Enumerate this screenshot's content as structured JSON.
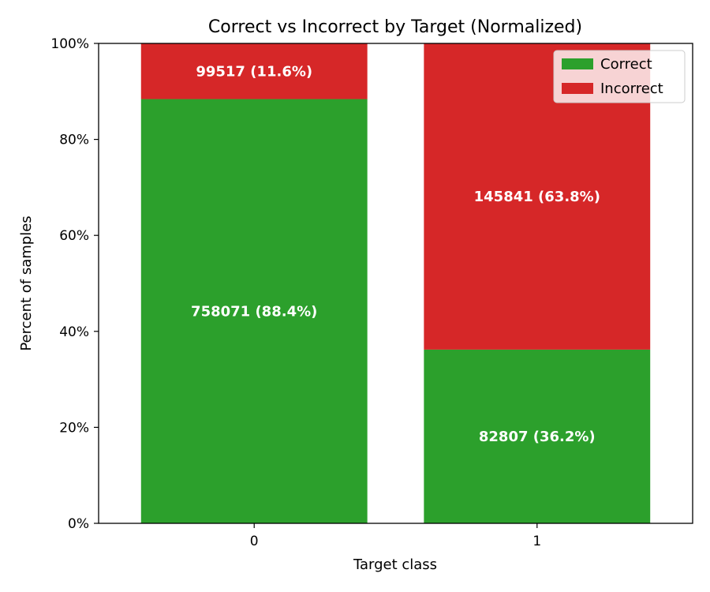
{
  "chart_data": {
    "type": "bar",
    "stacked": true,
    "normalized": true,
    "title": "Correct vs Incorrect by Target (Normalized)",
    "xlabel": "Target class",
    "ylabel": "Percent of samples",
    "categories": [
      "0",
      "1"
    ],
    "ylim": [
      0,
      100
    ],
    "yticks": [
      0,
      20,
      40,
      60,
      80,
      100
    ],
    "ytick_labels": [
      "0%",
      "20%",
      "40%",
      "60%",
      "80%",
      "100%"
    ],
    "series": [
      {
        "name": "Correct",
        "color": "#2ca02c",
        "values": [
          88.4,
          36.2
        ],
        "labels": [
          "758071 (88.4%)",
          "82807 (36.2%)"
        ]
      },
      {
        "name": "Incorrect",
        "color": "#d62728",
        "values": [
          11.6,
          63.8
        ],
        "labels": [
          "99517 (11.6%)",
          "145841 (63.8%)"
        ]
      }
    ],
    "legend": "top-right",
    "grid": false
  }
}
